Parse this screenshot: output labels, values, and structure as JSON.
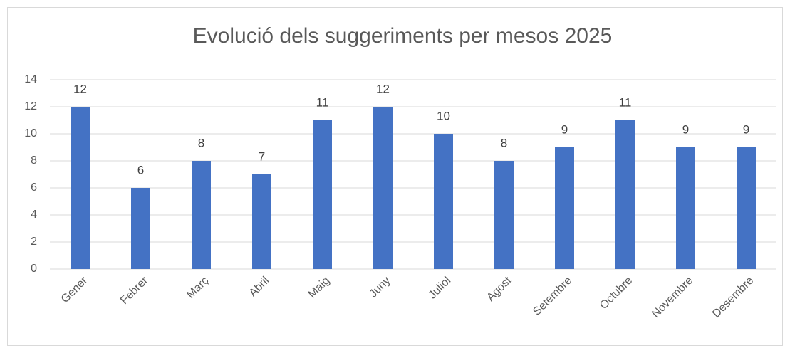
{
  "chart_data": {
    "type": "bar",
    "title": "Evolució dels suggeriments per mesos 2025",
    "categories": [
      "Gener",
      "Febrer",
      "Març",
      "Abril",
      "Maig",
      "Juny",
      "Juliol",
      "Agost",
      "Setembre",
      "Octubre",
      "Novembre",
      "Desembre"
    ],
    "values": [
      12,
      6,
      8,
      7,
      11,
      12,
      10,
      8,
      9,
      11,
      9,
      9
    ],
    "color": "#4472c4",
    "ylim": [
      0,
      14
    ],
    "yticks": [
      0,
      2,
      4,
      6,
      8,
      10,
      12,
      14
    ],
    "grid": true
  }
}
